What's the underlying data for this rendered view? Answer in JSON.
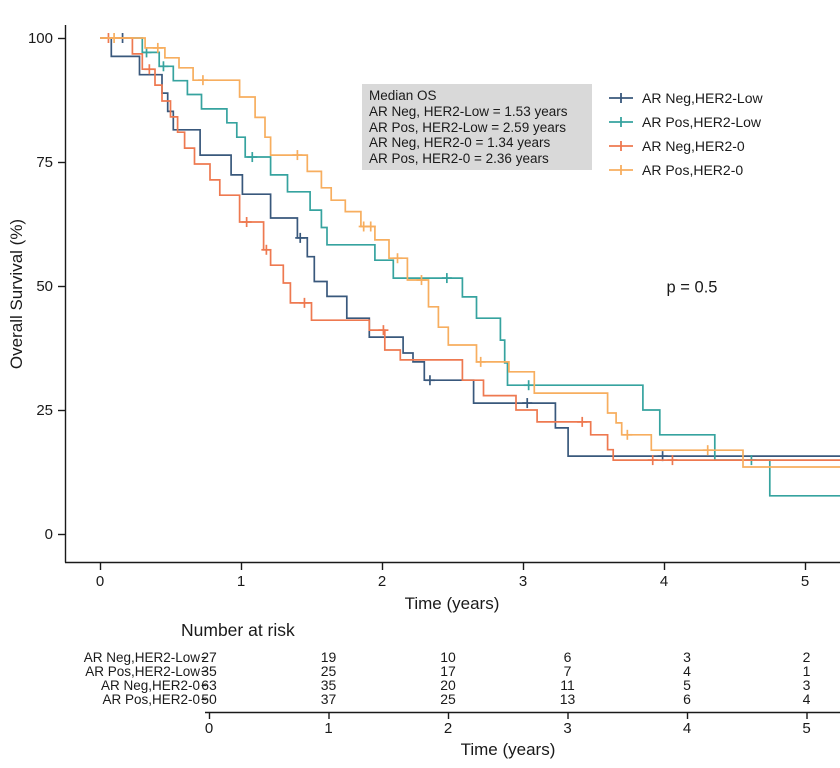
{
  "chart_data": {
    "type": "line",
    "subtype": "kaplan-meier-step",
    "title": "",
    "xlabel": "Time (years)",
    "ylabel": "Overall Survival (%)",
    "xlim": [
      0,
      5.25
    ],
    "ylim": [
      0,
      100
    ],
    "xticks": [
      0,
      1,
      2,
      3,
      4,
      5
    ],
    "yticks": [
      0,
      25,
      50,
      75,
      100
    ],
    "grid": false,
    "legend_position": "right-top",
    "p_value_label": "p = 0.5",
    "median_box": {
      "title": "Median OS",
      "lines": [
        "AR Neg, HER2-Low = 1.53 years",
        "AR Pos, HER2-Low = 2.59 years",
        "AR Neg, HER2-0 = 1.34 years",
        "AR Pos, HER2-0 = 2.36 years"
      ]
    },
    "series": [
      {
        "name": "AR Neg,HER2-Low",
        "color": "#39587C",
        "steps": [
          [
            0,
            100
          ],
          [
            0.08,
            96.3
          ],
          [
            0.28,
            92.6
          ],
          [
            0.44,
            88.9
          ],
          [
            0.48,
            85.2
          ],
          [
            0.52,
            81.5
          ],
          [
            0.71,
            76.4
          ],
          [
            0.93,
            72.4
          ],
          [
            1.01,
            68.5
          ],
          [
            1.21,
            63.7
          ],
          [
            1.4,
            59.7
          ],
          [
            1.47,
            55.9
          ],
          [
            1.52,
            50.9
          ],
          [
            1.61,
            47.9
          ],
          [
            1.75,
            43.5
          ],
          [
            1.91,
            39.7
          ],
          [
            2.15,
            36.5
          ],
          [
            2.22,
            34.7
          ],
          [
            2.3,
            31.0
          ],
          [
            2.65,
            26.4
          ],
          [
            3.23,
            21.4
          ],
          [
            3.32,
            15.7
          ],
          [
            5.25,
            15.7
          ]
        ],
        "censors": [
          [
            0.16,
            100
          ],
          [
            1.42,
            59.7
          ],
          [
            2.34,
            31.0
          ],
          [
            3.03,
            26.4
          ],
          [
            3.99,
            15.7
          ]
        ]
      },
      {
        "name": "AR Pos,HER2-Low",
        "color": "#36A39F",
        "steps": [
          [
            0,
            100
          ],
          [
            0.3,
            97.1
          ],
          [
            0.42,
            94.3
          ],
          [
            0.52,
            91.4
          ],
          [
            0.62,
            88.6
          ],
          [
            0.72,
            85.7
          ],
          [
            0.9,
            82.9
          ],
          [
            0.97,
            80.0
          ],
          [
            1.03,
            76.0
          ],
          [
            1.21,
            72.4
          ],
          [
            1.33,
            69.0
          ],
          [
            1.49,
            65.3
          ],
          [
            1.57,
            61.8
          ],
          [
            1.61,
            58.3
          ],
          [
            1.95,
            55.2
          ],
          [
            2.08,
            51.6
          ],
          [
            2.57,
            47.8
          ],
          [
            2.67,
            43.5
          ],
          [
            2.84,
            39.1
          ],
          [
            2.87,
            34.5
          ],
          [
            2.89,
            30.0
          ],
          [
            3.85,
            25.0
          ],
          [
            3.97,
            20.0
          ],
          [
            4.36,
            14.9
          ],
          [
            4.75,
            7.7
          ],
          [
            5.25,
            7.7
          ]
        ],
        "censors": [
          [
            0.33,
            97.1
          ],
          [
            0.45,
            94.3
          ],
          [
            1.08,
            76.0
          ],
          [
            2.46,
            51.6
          ],
          [
            3.04,
            30.0
          ],
          [
            4.62,
            14.9
          ]
        ]
      },
      {
        "name": "AR Neg,HER2-0",
        "color": "#EE7950",
        "steps": [
          [
            0,
            100
          ],
          [
            0.23,
            96.8
          ],
          [
            0.3,
            93.7
          ],
          [
            0.39,
            90.5
          ],
          [
            0.44,
            87.3
          ],
          [
            0.5,
            84.1
          ],
          [
            0.55,
            81.0
          ],
          [
            0.6,
            77.8
          ],
          [
            0.67,
            74.6
          ],
          [
            0.78,
            71.4
          ],
          [
            0.85,
            68.3
          ],
          [
            0.99,
            62.9
          ],
          [
            1.16,
            57.3
          ],
          [
            1.21,
            54.2
          ],
          [
            1.3,
            50.6
          ],
          [
            1.35,
            46.6
          ],
          [
            1.5,
            43.1
          ],
          [
            1.91,
            41.1
          ],
          [
            2.02,
            37.1
          ],
          [
            2.13,
            35.1
          ],
          [
            2.57,
            31.0
          ],
          [
            2.72,
            27.9
          ],
          [
            2.95,
            25.0
          ],
          [
            3.1,
            22.6
          ],
          [
            3.48,
            20.0
          ],
          [
            3.6,
            17.0
          ],
          [
            3.64,
            14.9
          ],
          [
            5.25,
            14.9
          ]
        ],
        "censors": [
          [
            0.06,
            100
          ],
          [
            0.35,
            93.7
          ],
          [
            1.04,
            62.9
          ],
          [
            1.18,
            57.3
          ],
          [
            1.45,
            46.6
          ],
          [
            2.01,
            41.1
          ],
          [
            3.42,
            22.6
          ],
          [
            3.92,
            14.9
          ],
          [
            4.06,
            14.9
          ]
        ]
      },
      {
        "name": "AR Pos,HER2-0",
        "color": "#F7AE5F",
        "steps": [
          [
            0,
            100
          ],
          [
            0.32,
            98.0
          ],
          [
            0.46,
            96.0
          ],
          [
            0.56,
            94.0
          ],
          [
            0.66,
            91.5
          ],
          [
            0.99,
            88.1
          ],
          [
            1.1,
            84.0
          ],
          [
            1.17,
            80.0
          ],
          [
            1.21,
            76.4
          ],
          [
            1.47,
            73.1
          ],
          [
            1.57,
            69.8
          ],
          [
            1.64,
            67.3
          ],
          [
            1.74,
            65.0
          ],
          [
            1.85,
            62.0
          ],
          [
            1.95,
            59.3
          ],
          [
            2.05,
            55.6
          ],
          [
            2.18,
            51.2
          ],
          [
            2.33,
            45.8
          ],
          [
            2.4,
            41.7
          ],
          [
            2.47,
            38.1
          ],
          [
            2.67,
            34.7
          ],
          [
            2.9,
            32.7
          ],
          [
            3.08,
            28.4
          ],
          [
            3.6,
            24.4
          ],
          [
            3.66,
            22.4
          ],
          [
            3.7,
            20.0
          ],
          [
            3.91,
            16.9
          ],
          [
            4.56,
            13.5
          ],
          [
            5.25,
            13.5
          ]
        ],
        "censors": [
          [
            0.1,
            100
          ],
          [
            0.41,
            98.0
          ],
          [
            0.73,
            91.5
          ],
          [
            1.4,
            76.4
          ],
          [
            1.87,
            62.0
          ],
          [
            1.92,
            62.0
          ],
          [
            2.11,
            55.6
          ],
          [
            2.28,
            51.2
          ],
          [
            2.7,
            34.7
          ],
          [
            3.74,
            20.0
          ],
          [
            4.31,
            16.9
          ]
        ]
      }
    ],
    "risk_table": {
      "title": "Number at risk",
      "xlabel": "Time (years)",
      "times": [
        0,
        1,
        2,
        3,
        4,
        5
      ],
      "rows": [
        {
          "label": "AR Neg,HER2-Low",
          "color": "#39587C",
          "values": [
            27,
            19,
            10,
            6,
            3,
            2
          ]
        },
        {
          "label": "AR Pos,HER2-Low",
          "color": "#36A39F",
          "values": [
            35,
            25,
            17,
            7,
            4,
            1
          ]
        },
        {
          "label": "AR Neg,HER2-0",
          "color": "#EE7950",
          "values": [
            63,
            35,
            20,
            11,
            5,
            3
          ]
        },
        {
          "label": "AR Pos,HER2-0",
          "color": "#F7AE5F",
          "values": [
            50,
            37,
            25,
            13,
            6,
            4
          ]
        }
      ]
    }
  }
}
